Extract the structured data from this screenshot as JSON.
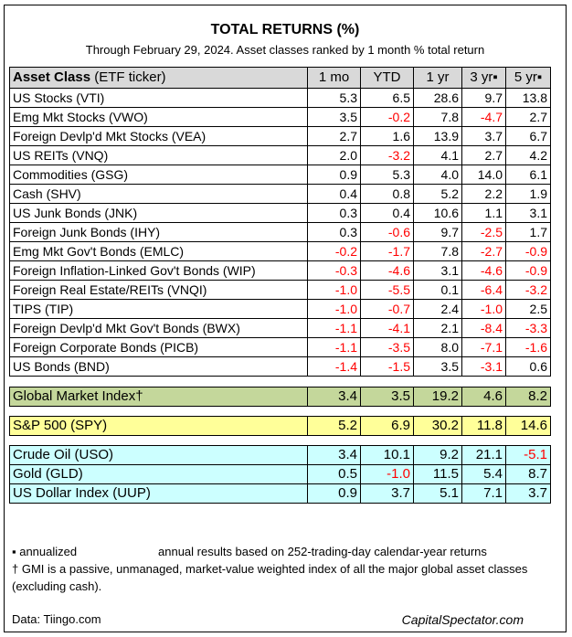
{
  "title": "TOTAL RETURNS (%)",
  "subtitle": "Through February 29, 2024. Asset classes ranked by 1 month % total return",
  "chart_data": {
    "type": "table",
    "columns": {
      "asset_bold": "Asset Class",
      "asset_rest": " (ETF ticker)",
      "m1": "1 mo",
      "ytd": "YTD",
      "y1": "1 yr",
      "y3": "3 yr▪",
      "y5": "5 yr▪"
    },
    "rows": [
      {
        "name": "US Stocks (VTI)",
        "values": [
          "5.3",
          "6.5",
          "28.6",
          "9.7",
          "13.8"
        ]
      },
      {
        "name": "Emg Mkt Stocks (VWO)",
        "values": [
          "3.5",
          "-0.2",
          "7.8",
          "-4.7",
          "2.7"
        ]
      },
      {
        "name": "Foreign Devlp'd Mkt Stocks (VEA)",
        "values": [
          "2.7",
          "1.6",
          "13.9",
          "3.7",
          "6.7"
        ]
      },
      {
        "name": "US REITs (VNQ)",
        "values": [
          "2.0",
          "-3.2",
          "4.1",
          "2.7",
          "4.2"
        ]
      },
      {
        "name": "Commodities (GSG)",
        "values": [
          "0.9",
          "5.3",
          "4.0",
          "14.0",
          "6.1"
        ]
      },
      {
        "name": "Cash (SHV)",
        "values": [
          "0.4",
          "0.8",
          "5.2",
          "2.2",
          "1.9"
        ]
      },
      {
        "name": "US Junk Bonds (JNK)",
        "values": [
          "0.3",
          "0.4",
          "10.6",
          "1.1",
          "3.1"
        ]
      },
      {
        "name": "Foreign Junk Bonds (IHY)",
        "values": [
          "0.3",
          "-0.6",
          "9.7",
          "-2.5",
          "1.7"
        ]
      },
      {
        "name": "Emg Mkt Gov't Bonds (EMLC)",
        "values": [
          "-0.2",
          "-1.7",
          "7.8",
          "-2.7",
          "-0.9"
        ]
      },
      {
        "name": "Foreign Inflation-Linked Gov't Bonds (WIP)",
        "values": [
          "-0.3",
          "-4.6",
          "3.1",
          "-4.6",
          "-0.9"
        ]
      },
      {
        "name": "Foreign Real Estate/REITs (VNQI)",
        "values": [
          "-1.0",
          "-5.5",
          "0.1",
          "-6.4",
          "-3.2"
        ]
      },
      {
        "name": "TIPS (TIP)",
        "values": [
          "-1.0",
          "-0.7",
          "2.4",
          "-1.0",
          "2.5"
        ]
      },
      {
        "name": "Foreign Devlp'd Mkt Gov't Bonds (BWX)",
        "values": [
          "-1.1",
          "-4.1",
          "2.1",
          "-8.4",
          "-3.3"
        ]
      },
      {
        "name": "Foreign Corporate Bonds (PICB)",
        "values": [
          "-1.1",
          "-3.5",
          "8.0",
          "-7.1",
          "-1.6"
        ]
      },
      {
        "name": "US Bonds (BND)",
        "values": [
          "-1.4",
          "-1.5",
          "3.5",
          "-3.1",
          "0.6"
        ]
      }
    ],
    "gmi": {
      "name": "Global Market Index†",
      "values": [
        "3.4",
        "3.5",
        "19.2",
        "4.6",
        "8.2"
      ]
    },
    "spy": {
      "name": "S&P 500 (SPY)",
      "values": [
        "5.2",
        "6.9",
        "30.2",
        "11.8",
        "14.6"
      ]
    },
    "commodities_fx": [
      {
        "name": "Crude Oil (USO)",
        "values": [
          "3.4",
          "10.1",
          "9.2",
          "21.1",
          "-5.1"
        ]
      },
      {
        "name": "Gold (GLD)",
        "values": [
          "0.5",
          "-1.0",
          "11.5",
          "5.4",
          "8.7"
        ]
      },
      {
        "name": "US Dollar Index (UUP)",
        "values": [
          "0.9",
          "3.7",
          "5.1",
          "7.1",
          "3.7"
        ]
      }
    ],
    "colors": {
      "header_bg": "#d9d9d9",
      "gmi_bg": "#c4d79b",
      "spy_bg": "#ffff99",
      "commodities_bg": "#ccffff",
      "negative": "#ff0000"
    }
  },
  "notes": {
    "annualized_left": "▪ annualized",
    "annualized_right": "annual results based on 252-trading-day calendar-year returns",
    "gmi": "† GMI is a passive, unmanaged, market-value weighted index of all the major global asset classes (excluding cash)."
  },
  "footer": {
    "source": "Data: Tiingo.com",
    "brand": "CapitalSpectator.com"
  }
}
